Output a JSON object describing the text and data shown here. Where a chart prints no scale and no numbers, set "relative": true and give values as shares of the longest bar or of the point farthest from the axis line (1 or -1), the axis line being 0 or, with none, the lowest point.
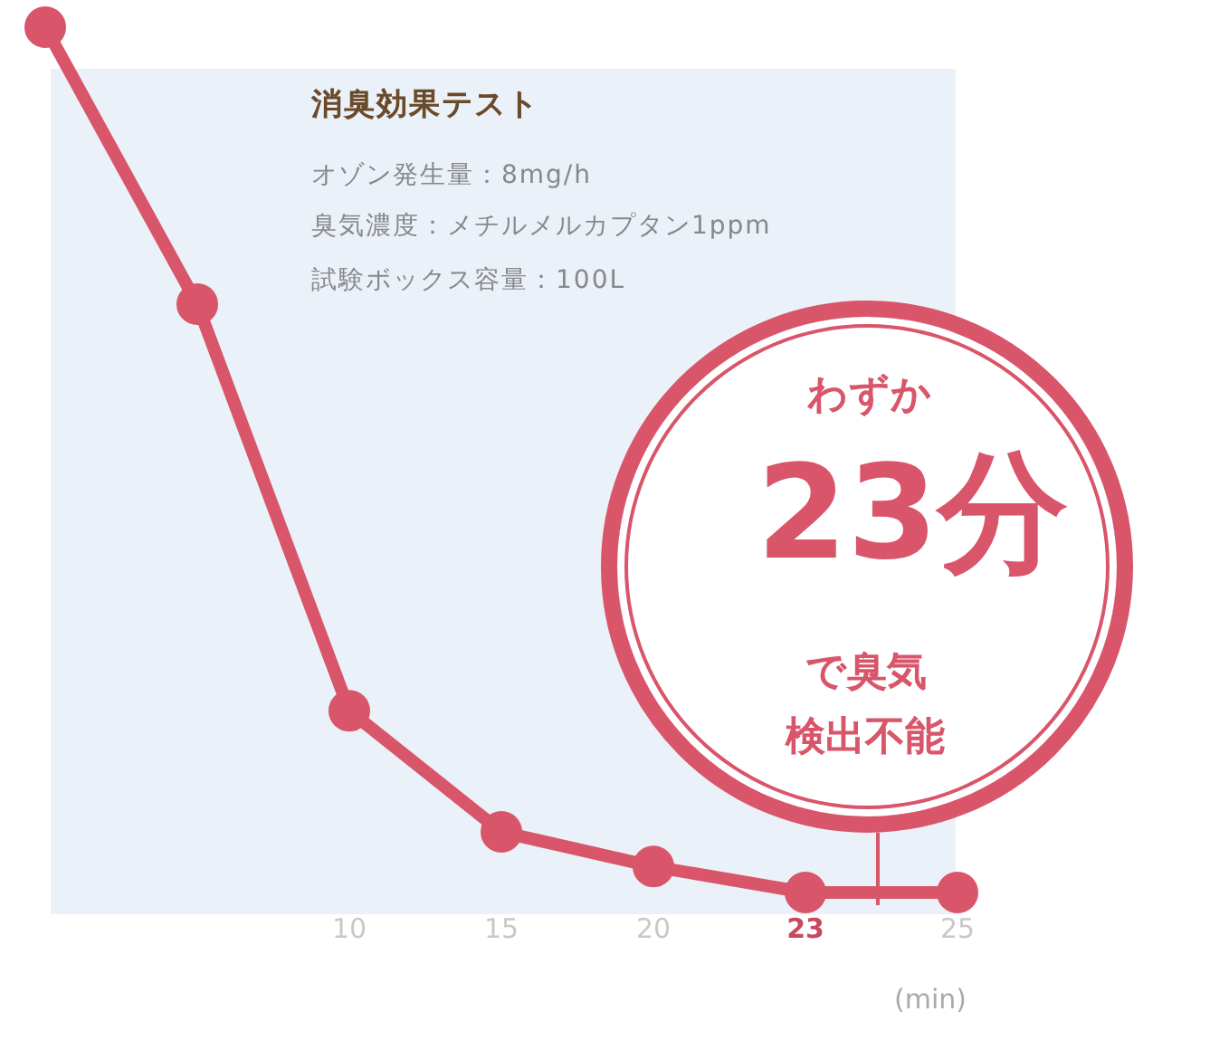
{
  "chart_data": {
    "type": "line",
    "title": "消臭効果テスト",
    "xlabel": "(min)",
    "categories": [
      null,
      null,
      "10",
      "15",
      "20",
      "23",
      "25"
    ],
    "series": [
      {
        "color": "#d9556a",
        "values": [
          1,
          0.68,
          0.21,
          0.07,
          0.03,
          0,
          0
        ]
      }
    ],
    "relative": true,
    "marker": "circle",
    "line_style": "solid",
    "grid": false,
    "legend": false,
    "annotations": [
      "オゾン発生量：8mg/h",
      "臭気濃度：メチルメルカプタン1ppm",
      "試験ボックス容量：100L",
      "わずか",
      "23分",
      "で臭気",
      "検出不能"
    ]
  }
}
